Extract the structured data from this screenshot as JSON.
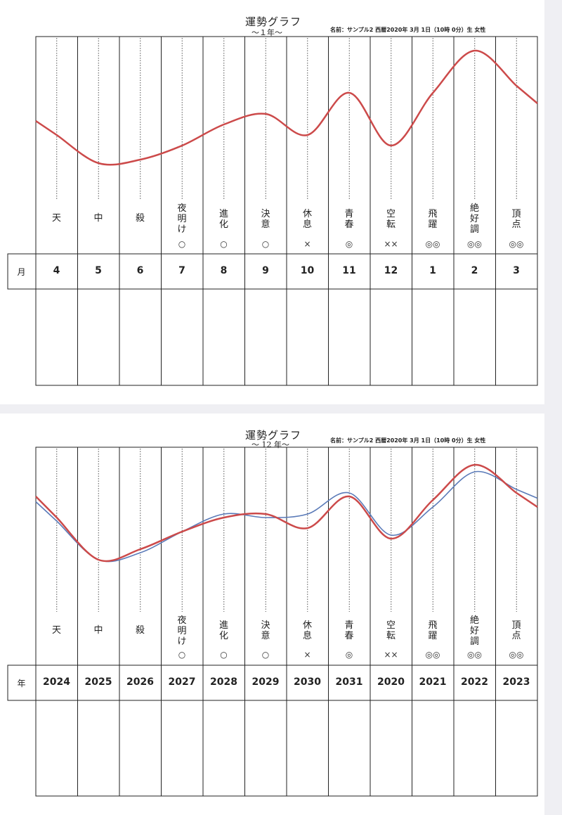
{
  "title": "運勢グラフ",
  "info": "名前：サンプル2 西暦2020年 3月 1日（10時 0分）生 女性",
  "labels": [
    "天",
    "中",
    "殺",
    "夜明け",
    "進化",
    "決意",
    "休息",
    "青春",
    "空転",
    "飛躍",
    "絶好調",
    "頂点"
  ],
  "marks": [
    "",
    "",
    "",
    "○",
    "○",
    "○",
    "×",
    "◎",
    "××",
    "◎◎",
    "◎◎",
    "◎◎"
  ],
  "colors": {
    "smooth_line": "#cc4a4a",
    "detail_line": "#5a7ab8",
    "grid": "#222222"
  },
  "chart_data": [
    {
      "type": "line",
      "subtitle": "～１年～",
      "row_label": "月",
      "categories": [
        "4",
        "5",
        "6",
        "7",
        "8",
        "9",
        "10",
        "11",
        "12",
        "1",
        "2",
        "3"
      ],
      "series": [
        {
          "values": [
            28,
            36,
            35,
            31,
            25,
            22,
            28,
            16,
            31,
            16,
            4,
            14
          ]
        }
      ],
      "ylim": [
        0,
        50
      ]
    },
    {
      "type": "line",
      "subtitle": "～ 12 年～",
      "row_label": "年",
      "categories": [
        "2024",
        "2025",
        "2026",
        "2027",
        "2028",
        "2029",
        "2030",
        "2031",
        "2020",
        "2021",
        "2022",
        "2023"
      ],
      "series": [
        {
          "values": [
            20,
            32,
            29,
            24,
            20,
            19,
            23,
            14,
            26,
            15,
            5,
            13
          ]
        },
        {
          "values": [
            21,
            32,
            30,
            24,
            19,
            20,
            19,
            13,
            25,
            17,
            7,
            12
          ]
        }
      ],
      "ylim": [
        0,
        50
      ]
    }
  ]
}
